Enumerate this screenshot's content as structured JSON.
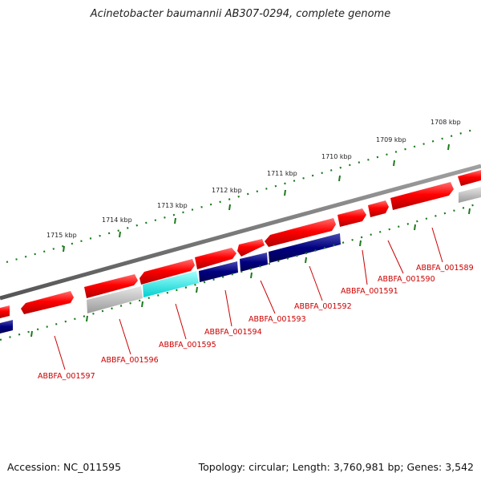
{
  "title": "Acinetobacter baumannii AB307-0294, complete genome",
  "footer": {
    "accession": "Accession: NC_011595",
    "summary": "Topology: circular; Length: 3,760,981 bp; Genes: 3,542"
  },
  "ticks": [
    "1708 kbp",
    "1709 kbp",
    "1710 kbp",
    "1711 kbp",
    "1712 kbp",
    "1713 kbp",
    "1714 kbp",
    "1715 kbp"
  ],
  "genes": [
    {
      "locus": "ABBFA_001589",
      "color": "#ff0000"
    },
    {
      "locus": "ABBFA_001590",
      "color": "#ff0000"
    },
    {
      "locus": "ABBFA_001591",
      "color": "#ff0000"
    },
    {
      "locus": "ABBFA_001592",
      "color": "#ff0000"
    },
    {
      "locus": "ABBFA_001593",
      "color": "#000080"
    },
    {
      "locus": "ABBFA_001594",
      "color": "#000080"
    },
    {
      "locus": "ABBFA_001595",
      "color": "#00ffff"
    },
    {
      "locus": "ABBFA_001596",
      "color": "#b0b0b0"
    },
    {
      "locus": "ABBFA_001597",
      "color": "#ff0000"
    }
  ],
  "colors": {
    "backbone": "#7a7a7a",
    "ticks": "#1b7a1b",
    "label": "#cc0000",
    "forward": "#ff0000",
    "reverse_grey": "#b0b0b0",
    "reverse_navy": "#000080",
    "reverse_cyan": "#00ffff"
  }
}
